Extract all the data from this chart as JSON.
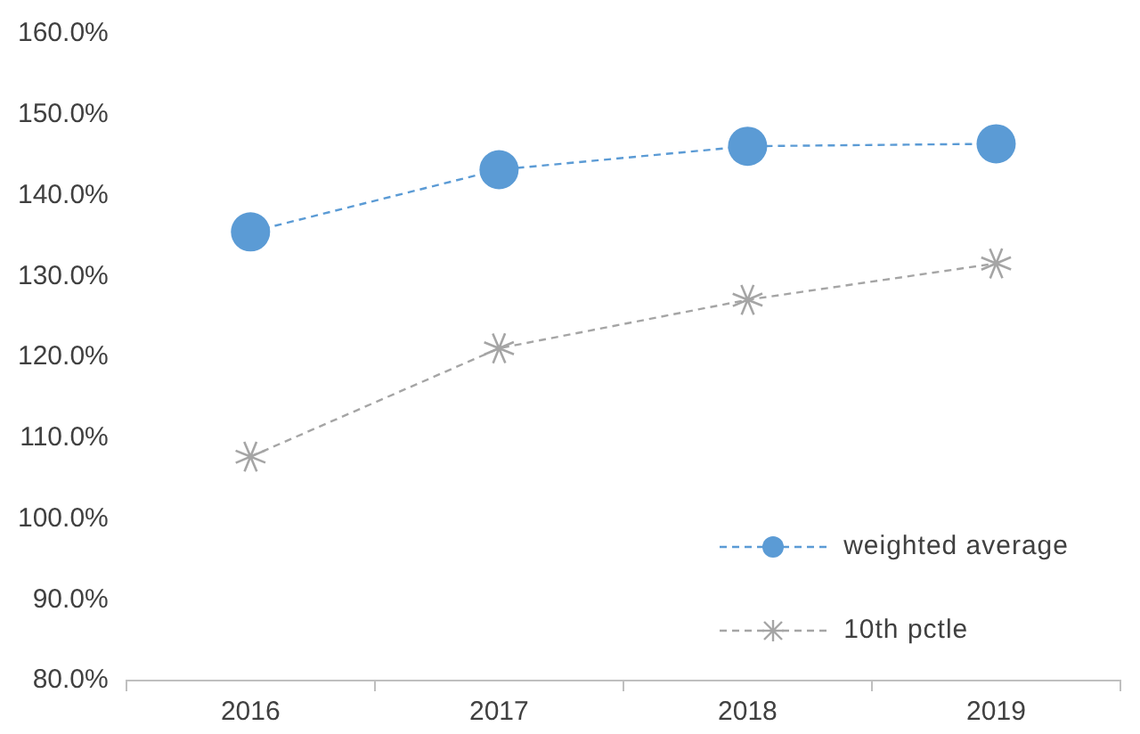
{
  "chart_data": {
    "type": "line",
    "categories": [
      "2016",
      "2017",
      "2018",
      "2019"
    ],
    "series": [
      {
        "name": "weighted average",
        "color": "#5b9bd5",
        "marker": "circle",
        "values": [
          135.5,
          143.2,
          146.1,
          146.4
        ]
      },
      {
        "name": "10th pctle",
        "color": "#a5a5a5",
        "marker": "cross",
        "values": [
          107.7,
          121.1,
          127.1,
          131.6
        ]
      }
    ],
    "ylim": [
      80,
      160
    ],
    "yticks": [
      {
        "value": 80,
        "label": "80.0%"
      },
      {
        "value": 90,
        "label": "90.0%"
      },
      {
        "value": 100,
        "label": "100.0%"
      },
      {
        "value": 110,
        "label": "110.0%"
      },
      {
        "value": 120,
        "label": "120.0%"
      },
      {
        "value": 130,
        "label": "130.0%"
      },
      {
        "value": 140,
        "label": "140.0%"
      },
      {
        "value": 150,
        "label": "150.0%"
      },
      {
        "value": 160,
        "label": "160.0%"
      }
    ],
    "line_style": "dashed",
    "grid": false,
    "legend": "bottom right"
  }
}
